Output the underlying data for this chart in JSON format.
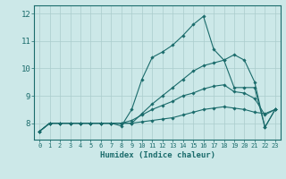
{
  "xlabel": "Humidex (Indice chaleur)",
  "xlim": [
    -0.5,
    23.5
  ],
  "ylim": [
    7.4,
    12.3
  ],
  "xticks": [
    0,
    1,
    2,
    3,
    4,
    5,
    6,
    7,
    8,
    9,
    10,
    11,
    12,
    13,
    14,
    15,
    16,
    17,
    18,
    19,
    20,
    21,
    22,
    23
  ],
  "yticks": [
    8,
    9,
    10,
    11,
    12
  ],
  "bg_color": "#cce8e8",
  "line_color": "#1a6b6b",
  "grid_color": "#aacccc",
  "series": [
    {
      "x": [
        0,
        1,
        2,
        3,
        4,
        5,
        6,
        7,
        8,
        9,
        10,
        11,
        12,
        13,
        14,
        15,
        16,
        17,
        18,
        19,
        20,
        21,
        22,
        23
      ],
      "y": [
        7.7,
        8.0,
        8.0,
        8.0,
        8.0,
        8.0,
        8.0,
        8.0,
        7.9,
        8.5,
        9.6,
        10.4,
        10.6,
        10.85,
        11.2,
        11.6,
        11.9,
        10.7,
        10.3,
        10.5,
        10.3,
        9.5,
        7.85,
        8.5
      ]
    },
    {
      "x": [
        0,
        1,
        2,
        3,
        4,
        5,
        6,
        7,
        8,
        9,
        10,
        11,
        12,
        13,
        14,
        15,
        16,
        17,
        18,
        19,
        20,
        21,
        22,
        23
      ],
      "y": [
        7.7,
        8.0,
        8.0,
        8.0,
        8.0,
        8.0,
        8.0,
        8.0,
        8.0,
        8.0,
        8.35,
        8.7,
        9.0,
        9.3,
        9.6,
        9.9,
        10.1,
        10.2,
        10.3,
        9.3,
        9.3,
        9.3,
        7.85,
        8.5
      ]
    },
    {
      "x": [
        0,
        1,
        2,
        3,
        4,
        5,
        6,
        7,
        8,
        9,
        10,
        11,
        12,
        13,
        14,
        15,
        16,
        17,
        18,
        19,
        20,
        21,
        22,
        23
      ],
      "y": [
        7.7,
        8.0,
        8.0,
        8.0,
        8.0,
        8.0,
        8.0,
        8.0,
        8.0,
        8.1,
        8.3,
        8.5,
        8.65,
        8.8,
        9.0,
        9.1,
        9.25,
        9.35,
        9.4,
        9.15,
        9.1,
        8.9,
        8.3,
        8.5
      ]
    },
    {
      "x": [
        0,
        1,
        2,
        3,
        4,
        5,
        6,
        7,
        8,
        9,
        10,
        11,
        12,
        13,
        14,
        15,
        16,
        17,
        18,
        19,
        20,
        21,
        22,
        23
      ],
      "y": [
        7.7,
        8.0,
        8.0,
        8.0,
        8.0,
        8.0,
        8.0,
        8.0,
        8.0,
        8.0,
        8.05,
        8.1,
        8.15,
        8.2,
        8.3,
        8.4,
        8.5,
        8.55,
        8.6,
        8.55,
        8.5,
        8.4,
        8.35,
        8.5
      ]
    }
  ]
}
